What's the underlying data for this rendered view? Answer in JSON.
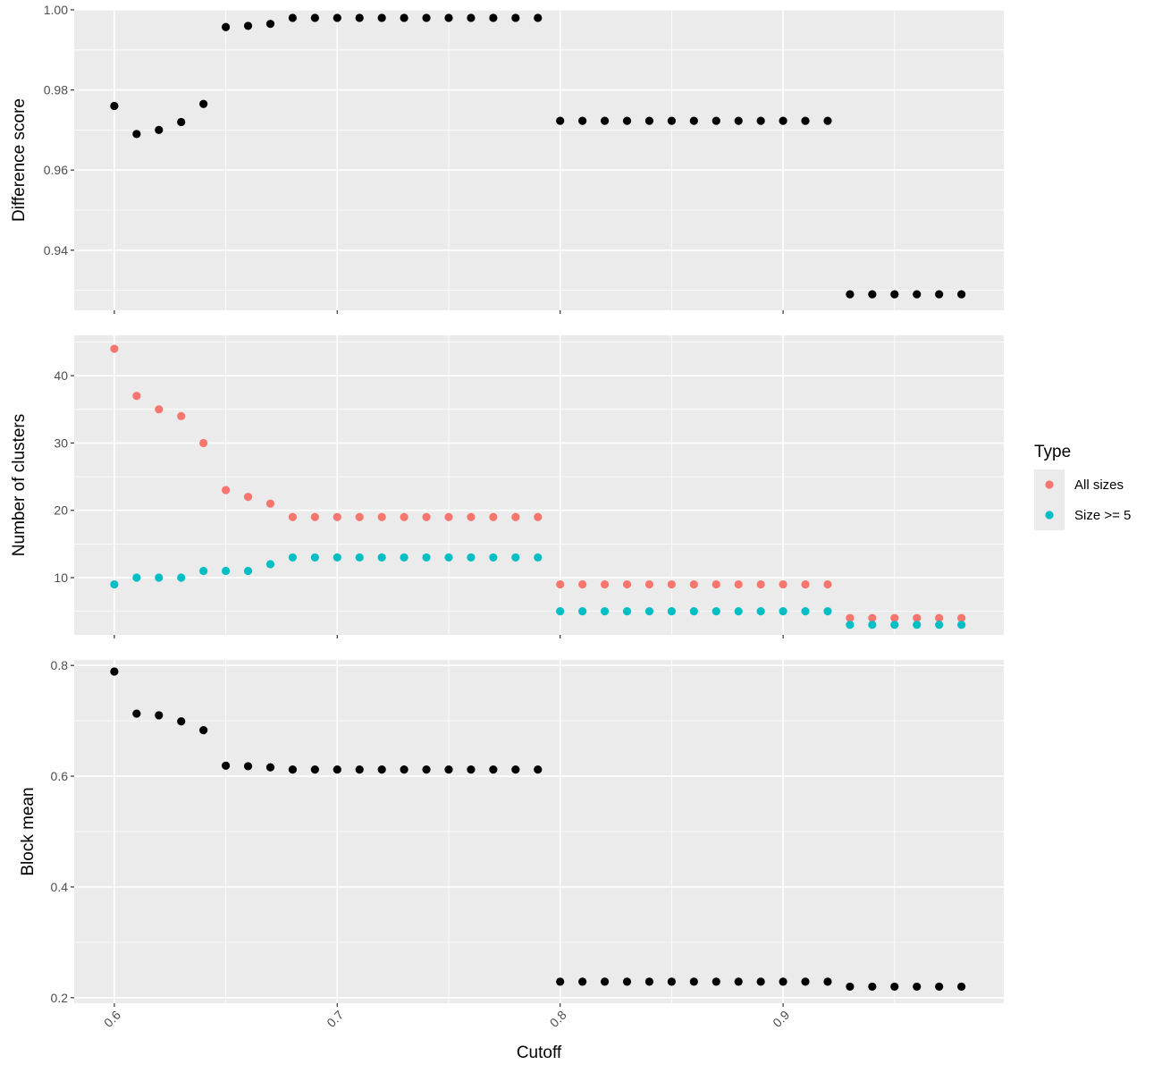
{
  "colors": {
    "panel_bg": "#ebebeb",
    "grid": "#ffffff",
    "point_default": "#000000",
    "all_sizes": "#f8766d",
    "size_ge5": "#00bfc4"
  },
  "chart_data": [
    {
      "type": "scatter",
      "ylabel": "Difference score",
      "ylim": [
        0.925,
        1.0
      ],
      "yticks": [
        0.94,
        0.96,
        0.98,
        1.0
      ],
      "ytick_labels": [
        "0.94",
        "0.96",
        "0.98",
        "1.00"
      ],
      "series": [
        {
          "x": [
            0.6,
            0.61,
            0.62,
            0.63,
            0.64,
            0.65,
            0.66,
            0.67,
            0.68,
            0.69,
            0.7,
            0.71,
            0.72,
            0.73,
            0.74,
            0.75,
            0.76,
            0.77,
            0.78,
            0.79,
            0.8,
            0.81,
            0.82,
            0.83,
            0.84,
            0.85,
            0.86,
            0.87,
            0.88,
            0.89,
            0.9,
            0.91,
            0.92,
            0.93,
            0.94,
            0.95,
            0.96,
            0.97,
            0.98
          ],
          "y": [
            0.976,
            0.969,
            0.97,
            0.972,
            0.9765,
            0.9957,
            0.996,
            0.9965,
            0.998,
            0.998,
            0.998,
            0.998,
            0.998,
            0.998,
            0.998,
            0.998,
            0.998,
            0.998,
            0.998,
            0.998,
            0.9723,
            0.9723,
            0.9723,
            0.9723,
            0.9723,
            0.9723,
            0.9723,
            0.9723,
            0.9723,
            0.9723,
            0.9723,
            0.9723,
            0.9723,
            0.929,
            0.929,
            0.929,
            0.929,
            0.929,
            0.929
          ]
        }
      ]
    },
    {
      "type": "scatter",
      "ylabel": "Number of clusters",
      "ylim": [
        1.5,
        46
      ],
      "yticks": [
        10,
        20,
        30,
        40
      ],
      "ytick_labels": [
        "10",
        "20",
        "30",
        "40"
      ],
      "legend": {
        "title": "Type",
        "entries": [
          "All sizes",
          "Size >= 5"
        ]
      },
      "series": [
        {
          "name": "All sizes",
          "x": [
            0.6,
            0.61,
            0.62,
            0.63,
            0.64,
            0.65,
            0.66,
            0.67,
            0.68,
            0.69,
            0.7,
            0.71,
            0.72,
            0.73,
            0.74,
            0.75,
            0.76,
            0.77,
            0.78,
            0.79,
            0.8,
            0.81,
            0.82,
            0.83,
            0.84,
            0.85,
            0.86,
            0.87,
            0.88,
            0.89,
            0.9,
            0.91,
            0.92,
            0.93,
            0.94,
            0.95,
            0.96,
            0.97,
            0.98
          ],
          "y": [
            44,
            37,
            35,
            34,
            30,
            23,
            22,
            21,
            19,
            19,
            19,
            19,
            19,
            19,
            19,
            19,
            19,
            19,
            19,
            19,
            9,
            9,
            9,
            9,
            9,
            9,
            9,
            9,
            9,
            9,
            9,
            9,
            9,
            4,
            4,
            4,
            4,
            4,
            4
          ]
        },
        {
          "name": "Size >= 5",
          "x": [
            0.6,
            0.61,
            0.62,
            0.63,
            0.64,
            0.65,
            0.66,
            0.67,
            0.68,
            0.69,
            0.7,
            0.71,
            0.72,
            0.73,
            0.74,
            0.75,
            0.76,
            0.77,
            0.78,
            0.79,
            0.8,
            0.81,
            0.82,
            0.83,
            0.84,
            0.85,
            0.86,
            0.87,
            0.88,
            0.89,
            0.9,
            0.91,
            0.92,
            0.93,
            0.94,
            0.95,
            0.96,
            0.97,
            0.98
          ],
          "y": [
            9,
            10,
            10,
            10,
            11,
            11,
            11,
            12,
            13,
            13,
            13,
            13,
            13,
            13,
            13,
            13,
            13,
            13,
            13,
            13,
            5,
            5,
            5,
            5,
            5,
            5,
            5,
            5,
            5,
            5,
            5,
            5,
            5,
            3,
            3,
            3,
            3,
            3,
            3
          ]
        }
      ]
    },
    {
      "type": "scatter",
      "ylabel": "Block mean",
      "xlabel": "Cutoff",
      "ylim": [
        0.19,
        0.81
      ],
      "yticks": [
        0.2,
        0.4,
        0.6,
        0.8
      ],
      "ytick_labels": [
        "0.2",
        "0.4",
        "0.6",
        "0.8"
      ],
      "series": [
        {
          "x": [
            0.6,
            0.61,
            0.62,
            0.63,
            0.64,
            0.65,
            0.66,
            0.67,
            0.68,
            0.69,
            0.7,
            0.71,
            0.72,
            0.73,
            0.74,
            0.75,
            0.76,
            0.77,
            0.78,
            0.79,
            0.8,
            0.81,
            0.82,
            0.83,
            0.84,
            0.85,
            0.86,
            0.87,
            0.88,
            0.89,
            0.9,
            0.91,
            0.92,
            0.93,
            0.94,
            0.95,
            0.96,
            0.97,
            0.98
          ],
          "y": [
            0.789,
            0.713,
            0.71,
            0.699,
            0.683,
            0.619,
            0.618,
            0.616,
            0.612,
            0.612,
            0.612,
            0.612,
            0.612,
            0.612,
            0.612,
            0.612,
            0.612,
            0.612,
            0.612,
            0.612,
            0.229,
            0.229,
            0.229,
            0.229,
            0.229,
            0.229,
            0.229,
            0.229,
            0.229,
            0.229,
            0.229,
            0.229,
            0.229,
            0.22,
            0.22,
            0.22,
            0.22,
            0.22,
            0.22
          ]
        }
      ]
    }
  ],
  "x_axis": {
    "xlim": [
      0.582,
      0.999
    ],
    "ticks": [
      0.6,
      0.7,
      0.8,
      0.9
    ],
    "tick_labels": [
      "0.6",
      "0.7",
      "0.8",
      "0.9"
    ],
    "label": "Cutoff"
  }
}
